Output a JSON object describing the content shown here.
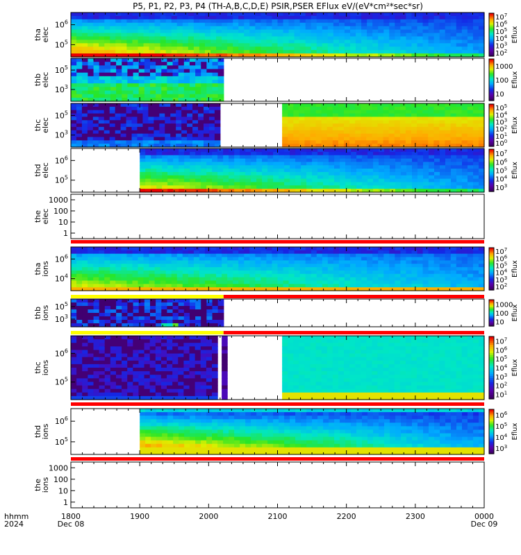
{
  "title": "P5, P1, P2, P3, P4 (TH-A,B,C,D,E) PSIR,PSER EFlux eV/(eV*cm²*sec*sr)",
  "colors": {
    "red_bar": "#ff0000",
    "yellow_bar": "#ffff00",
    "frame": "#000000"
  },
  "chart_data": {
    "type": "heatmap",
    "title": "P5, P1, P2, P3, P4 (TH-A,B,C,D,E) PSIR,PSER EFlux eV/(eV*cm²*sec*sr)",
    "xlabel_left": [
      "hhmm",
      "2024"
    ],
    "x_ticks": [
      {
        "label": "1800",
        "date": "Dec 08"
      },
      {
        "label": "1900",
        "date": ""
      },
      {
        "label": "2000",
        "date": ""
      },
      {
        "label": "2100",
        "date": ""
      },
      {
        "label": "2200",
        "date": ""
      },
      {
        "label": "2300",
        "date": ""
      },
      {
        "label": "0000",
        "date": "Dec 09"
      }
    ],
    "xlim": [
      "2024-12-08 18:00",
      "2024-12-09 00:00"
    ],
    "panels": [
      {
        "probe": "tha",
        "species": "elec",
        "ylabel": [
          "tha",
          "elec"
        ],
        "y_ticks": [
          {
            "label": "10",
            "exp": "6"
          },
          {
            "label": "10",
            "exp": "5"
          }
        ],
        "colorbar": {
          "label": "Eflux",
          "ticks": [
            {
              "label": "10",
              "exp": "7"
            },
            {
              "label": "10",
              "exp": "6"
            },
            {
              "label": "10",
              "exp": "5"
            },
            {
              "label": "10",
              "exp": "4"
            },
            {
              "label": "10",
              "exp": "3"
            },
            {
              "label": "10",
              "exp": "2"
            }
          ]
        },
        "data_start": "18:00",
        "data_end": "00:00",
        "gap": null,
        "mode": "high",
        "below_bar": null
      },
      {
        "probe": "thb",
        "species": "elec",
        "ylabel": [
          "thb",
          "elec"
        ],
        "y_ticks": [
          {
            "label": "10",
            "exp": "5"
          },
          {
            "label": "10",
            "exp": "3"
          }
        ],
        "colorbar": {
          "label": "Eflux",
          "ticks": [
            {
              "label": "1000",
              "exp": ""
            },
            {
              "label": "100",
              "exp": ""
            },
            {
              "label": "10",
              "exp": ""
            }
          ]
        },
        "data_start": "18:00",
        "data_end": "20:13",
        "gap": null,
        "mode": "noisy",
        "below_bar": null
      },
      {
        "probe": "thc",
        "species": "elec",
        "ylabel": [
          "thc",
          "elec"
        ],
        "y_ticks": [
          {
            "label": "10",
            "exp": "5"
          },
          {
            "label": "10",
            "exp": "3"
          }
        ],
        "colorbar": {
          "label": "Eflux",
          "ticks": [
            {
              "label": "10",
              "exp": "5"
            },
            {
              "label": "10",
              "exp": "4"
            },
            {
              "label": "10",
              "exp": "3"
            },
            {
              "label": "10",
              "exp": "2"
            },
            {
              "label": "10",
              "exp": "1"
            },
            {
              "label": "10",
              "exp": "0"
            }
          ]
        },
        "data_start": "18:00",
        "data_end": "00:00",
        "gap": [
          "20:10",
          "21:04"
        ],
        "mode": "dark_then_warm",
        "below_bar": null
      },
      {
        "probe": "thd",
        "species": "elec",
        "ylabel": [
          "thd",
          "elec"
        ],
        "y_ticks": [
          {
            "label": "10",
            "exp": "6"
          },
          {
            "label": "10",
            "exp": "5"
          }
        ],
        "colorbar": {
          "label": "Eflux",
          "ticks": [
            {
              "label": "10",
              "exp": "7"
            },
            {
              "label": "10",
              "exp": "6"
            },
            {
              "label": "10",
              "exp": "5"
            },
            {
              "label": "10",
              "exp": "4"
            },
            {
              "label": "10",
              "exp": "3"
            }
          ]
        },
        "data_start": "19:00",
        "data_end": "00:00",
        "gap": null,
        "mode": "high",
        "below_bar": null
      },
      {
        "probe": "the",
        "species": "elec",
        "ylabel": [
          "the",
          "elec"
        ],
        "y_ticks": [
          {
            "label": "1000",
            "exp": ""
          },
          {
            "label": "100",
            "exp": ""
          },
          {
            "label": "10",
            "exp": ""
          },
          {
            "label": "1",
            "exp": ""
          }
        ],
        "colorbar": null,
        "data_start": null,
        "data_end": null,
        "gap": null,
        "mode": "empty",
        "below_bar": "red"
      },
      {
        "probe": "tha",
        "species": "ions",
        "ylabel": [
          "tha",
          "ions"
        ],
        "y_ticks": [
          {
            "label": "10",
            "exp": "6"
          },
          {
            "label": "10",
            "exp": "4"
          }
        ],
        "colorbar": {
          "label": "Eflux",
          "ticks": [
            {
              "label": "10",
              "exp": "7"
            },
            {
              "label": "10",
              "exp": "6"
            },
            {
              "label": "10",
              "exp": "5"
            },
            {
              "label": "10",
              "exp": "4"
            },
            {
              "label": "10",
              "exp": "3"
            },
            {
              "label": "10",
              "exp": "2"
            }
          ]
        },
        "data_start": "18:00",
        "data_end": "00:00",
        "gap": null,
        "mode": "mid",
        "below_bar": "yellow_red"
      },
      {
        "probe": "thb",
        "species": "ions",
        "ylabel": [
          "thb",
          "ions"
        ],
        "y_ticks": [
          {
            "label": "10",
            "exp": "5"
          },
          {
            "label": "10",
            "exp": "3"
          }
        ],
        "colorbar": {
          "label": "Eflux",
          "ticks": [
            {
              "label": "1000",
              "exp": ""
            },
            {
              "label": "100",
              "exp": ""
            },
            {
              "label": "10",
              "exp": ""
            }
          ]
        },
        "data_start": "18:00",
        "data_end": "20:13",
        "gap": null,
        "mode": "noisy_dark",
        "below_bar": "yellow_red"
      },
      {
        "probe": "thc",
        "species": "ions",
        "ylabel": [
          "thc",
          "ions"
        ],
        "y_ticks": [
          {
            "label": "10",
            "exp": "6"
          },
          {
            "label": "10",
            "exp": "5"
          }
        ],
        "colorbar": {
          "label": "Eflux",
          "ticks": [
            {
              "label": "10",
              "exp": "7"
            },
            {
              "label": "10",
              "exp": "6"
            },
            {
              "label": "10",
              "exp": "5"
            },
            {
              "label": "10",
              "exp": "4"
            },
            {
              "label": "10",
              "exp": "3"
            },
            {
              "label": "10",
              "exp": "2"
            },
            {
              "label": "10",
              "exp": "1"
            }
          ]
        },
        "data_start": "18:00",
        "data_end": "00:00",
        "gap": [
          "20:15",
          "21:04"
        ],
        "mode": "dark_then_cyan",
        "below_bar": "red"
      },
      {
        "probe": "thd",
        "species": "ions",
        "ylabel": [
          "thd",
          "ions"
        ],
        "y_ticks": [
          {
            "label": "10",
            "exp": "6"
          },
          {
            "label": "10",
            "exp": "5"
          }
        ],
        "colorbar": {
          "label": "Eflux",
          "ticks": [
            {
              "label": "10",
              "exp": "6"
            },
            {
              "label": "10",
              "exp": "5"
            },
            {
              "label": "10",
              "exp": "4"
            },
            {
              "label": "10",
              "exp": "3"
            }
          ]
        },
        "data_start": "19:00",
        "data_end": "00:00",
        "gap": null,
        "mode": "mid_warm",
        "below_bar": "red"
      },
      {
        "probe": "the",
        "species": "ions",
        "ylabel": [
          "the",
          "ions"
        ],
        "y_ticks": [
          {
            "label": "1000",
            "exp": ""
          },
          {
            "label": "100",
            "exp": ""
          },
          {
            "label": "10",
            "exp": ""
          },
          {
            "label": "1",
            "exp": ""
          }
        ],
        "colorbar": null,
        "data_start": null,
        "data_end": null,
        "gap": null,
        "mode": "empty",
        "below_bar": null
      }
    ]
  }
}
